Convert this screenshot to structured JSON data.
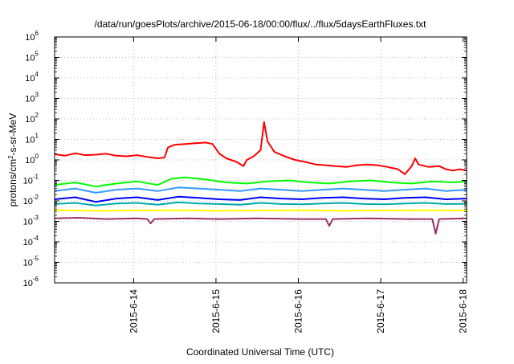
{
  "chart_data": {
    "type": "line",
    "title": "/data/run/goesPlots/archive/2015-06-18/00:00/flux/../flux/5daysEarthFluxes.txt",
    "xlabel": "Coordinated Universal Time (UTC)",
    "ylabel_parts": [
      "protons/cm",
      "2",
      "-s-sr-MeV"
    ],
    "y_scale": "log",
    "ylim": [
      1e-06,
      1000000.0
    ],
    "y_ticks": [
      {
        "base": "10",
        "exp": "-6",
        "value": 1e-06
      },
      {
        "base": "10",
        "exp": "-5",
        "value": 1e-05
      },
      {
        "base": "10",
        "exp": "-4",
        "value": 0.0001
      },
      {
        "base": "10",
        "exp": "-3",
        "value": 0.001
      },
      {
        "base": "10",
        "exp": "-2",
        "value": 0.01
      },
      {
        "base": "10",
        "exp": "-1",
        "value": 0.1
      },
      {
        "base": "10",
        "exp": "0",
        "value": 1
      },
      {
        "base": "10",
        "exp": "1",
        "value": 10
      },
      {
        "base": "10",
        "exp": "2",
        "value": 100
      },
      {
        "base": "10",
        "exp": "3",
        "value": 1000
      },
      {
        "base": "10",
        "exp": "4",
        "value": 10000
      },
      {
        "base": "10",
        "exp": "5",
        "value": 100000
      },
      {
        "base": "10",
        "exp": "6",
        "value": 1000000
      }
    ],
    "xlim": [
      "2015-06-13T01:00",
      "2015-06-18T01:00"
    ],
    "x_ticks": [
      {
        "label": "2015-6-14",
        "date": "2015-06-14T00:00"
      },
      {
        "label": "2015-6-15",
        "date": "2015-06-15T00:00"
      },
      {
        "label": "2015-6-16",
        "date": "2015-06-16T00:00"
      },
      {
        "label": "2015-6-17",
        "date": "2015-06-17T00:00"
      },
      {
        "label": "2015-6-18",
        "date": "2015-06-18T00:00"
      }
    ],
    "grid": true,
    "series": [
      {
        "color": "#ff0000",
        "width": 2,
        "points": [
          [
            "2015-06-13T01:00",
            1.9
          ],
          [
            "2015-06-13T04:00",
            1.6
          ],
          [
            "2015-06-13T07:00",
            2.1
          ],
          [
            "2015-06-13T10:00",
            1.7
          ],
          [
            "2015-06-13T13:00",
            1.8
          ],
          [
            "2015-06-13T16:00",
            2.0
          ],
          [
            "2015-06-13T19:00",
            1.6
          ],
          [
            "2015-06-13T22:00",
            1.5
          ],
          [
            "2015-06-14T01:00",
            1.7
          ],
          [
            "2015-06-14T04:00",
            1.4
          ],
          [
            "2015-06-14T07:00",
            1.2
          ],
          [
            "2015-06-14T09:00",
            1.3
          ],
          [
            "2015-06-14T10:00",
            4.0
          ],
          [
            "2015-06-14T12:00",
            5.5
          ],
          [
            "2015-06-14T15:00",
            6.0
          ],
          [
            "2015-06-14T18:00",
            6.5
          ],
          [
            "2015-06-14T21:00",
            7.0
          ],
          [
            "2015-06-14T23:00",
            6.0
          ],
          [
            "2015-06-15T01:00",
            2.0
          ],
          [
            "2015-06-15T03:00",
            1.2
          ],
          [
            "2015-06-15T06:00",
            0.8
          ],
          [
            "2015-06-15T08:00",
            0.5
          ],
          [
            "2015-06-15T09:00",
            1.0
          ],
          [
            "2015-06-15T11:00",
            1.5
          ],
          [
            "2015-06-15T13:00",
            3.0
          ],
          [
            "2015-06-15T14:00",
            70.0
          ],
          [
            "2015-06-15T15:00",
            8.0
          ],
          [
            "2015-06-15T17:00",
            2.5
          ],
          [
            "2015-06-15T20:00",
            1.5
          ],
          [
            "2015-06-15T23:00",
            1.0
          ],
          [
            "2015-06-16T02:00",
            0.8
          ],
          [
            "2015-06-16T05:00",
            0.6
          ],
          [
            "2015-06-16T08:00",
            0.55
          ],
          [
            "2015-06-16T11:00",
            0.5
          ],
          [
            "2015-06-16T14:00",
            0.45
          ],
          [
            "2015-06-16T17:00",
            0.55
          ],
          [
            "2015-06-16T20:00",
            0.6
          ],
          [
            "2015-06-16T23:00",
            0.55
          ],
          [
            "2015-06-17T02:00",
            0.45
          ],
          [
            "2015-06-17T05:00",
            0.35
          ],
          [
            "2015-06-17T07:00",
            0.2
          ],
          [
            "2015-06-17T09:00",
            0.5
          ],
          [
            "2015-06-17T10:00",
            1.2
          ],
          [
            "2015-06-17T11:00",
            0.6
          ],
          [
            "2015-06-17T14:00",
            0.45
          ],
          [
            "2015-06-17T17:00",
            0.5
          ],
          [
            "2015-06-17T19:00",
            0.35
          ],
          [
            "2015-06-17T21:00",
            0.3
          ],
          [
            "2015-06-17T23:00",
            0.35
          ],
          [
            "2015-06-18T01:00",
            0.3
          ]
        ]
      },
      {
        "color": "#00ff00",
        "width": 2,
        "points": [
          [
            "2015-06-13T01:00",
            0.06
          ],
          [
            "2015-06-13T07:00",
            0.08
          ],
          [
            "2015-06-13T13:00",
            0.05
          ],
          [
            "2015-06-13T19:00",
            0.07
          ],
          [
            "2015-06-14T01:00",
            0.09
          ],
          [
            "2015-06-14T07:00",
            0.06
          ],
          [
            "2015-06-14T11:00",
            0.12
          ],
          [
            "2015-06-14T15:00",
            0.14
          ],
          [
            "2015-06-14T21:00",
            0.11
          ],
          [
            "2015-06-15T03:00",
            0.08
          ],
          [
            "2015-06-15T09:00",
            0.07
          ],
          [
            "2015-06-15T15:00",
            0.09
          ],
          [
            "2015-06-15T21:00",
            0.1
          ],
          [
            "2015-06-16T03:00",
            0.08
          ],
          [
            "2015-06-16T09:00",
            0.07
          ],
          [
            "2015-06-16T15:00",
            0.09
          ],
          [
            "2015-06-16T21:00",
            0.1
          ],
          [
            "2015-06-17T03:00",
            0.08
          ],
          [
            "2015-06-17T09:00",
            0.07
          ],
          [
            "2015-06-17T15:00",
            0.09
          ],
          [
            "2015-06-17T21:00",
            0.08
          ],
          [
            "2015-06-18T01:00",
            0.09
          ]
        ]
      },
      {
        "color": "#3399ff",
        "width": 2,
        "points": [
          [
            "2015-06-13T01:00",
            0.03
          ],
          [
            "2015-06-13T07:00",
            0.04
          ],
          [
            "2015-06-13T13:00",
            0.025
          ],
          [
            "2015-06-13T19:00",
            0.035
          ],
          [
            "2015-06-14T01:00",
            0.04
          ],
          [
            "2015-06-14T07:00",
            0.03
          ],
          [
            "2015-06-14T13:00",
            0.045
          ],
          [
            "2015-06-14T19:00",
            0.04
          ],
          [
            "2015-06-15T01:00",
            0.035
          ],
          [
            "2015-06-15T07:00",
            0.03
          ],
          [
            "2015-06-15T13:00",
            0.04
          ],
          [
            "2015-06-15T19:00",
            0.035
          ],
          [
            "2015-06-16T01:00",
            0.03
          ],
          [
            "2015-06-16T07:00",
            0.035
          ],
          [
            "2015-06-16T13:00",
            0.04
          ],
          [
            "2015-06-16T19:00",
            0.035
          ],
          [
            "2015-06-17T01:00",
            0.03
          ],
          [
            "2015-06-17T07:00",
            0.035
          ],
          [
            "2015-06-17T13:00",
            0.04
          ],
          [
            "2015-06-17T19:00",
            0.03
          ],
          [
            "2015-06-18T01:00",
            0.035
          ]
        ]
      },
      {
        "color": "#0000ff",
        "width": 2,
        "points": [
          [
            "2015-06-13T01:00",
            0.012
          ],
          [
            "2015-06-13T07:00",
            0.015
          ],
          [
            "2015-06-13T13:00",
            0.009
          ],
          [
            "2015-06-13T19:00",
            0.013
          ],
          [
            "2015-06-14T01:00",
            0.015
          ],
          [
            "2015-06-14T07:00",
            0.011
          ],
          [
            "2015-06-14T13:00",
            0.016
          ],
          [
            "2015-06-14T19:00",
            0.014
          ],
          [
            "2015-06-15T01:00",
            0.012
          ],
          [
            "2015-06-15T07:00",
            0.011
          ],
          [
            "2015-06-15T13:00",
            0.015
          ],
          [
            "2015-06-15T19:00",
            0.013
          ],
          [
            "2015-06-16T01:00",
            0.012
          ],
          [
            "2015-06-16T07:00",
            0.014
          ],
          [
            "2015-06-16T13:00",
            0.015
          ],
          [
            "2015-06-16T19:00",
            0.013
          ],
          [
            "2015-06-17T01:00",
            0.012
          ],
          [
            "2015-06-17T07:00",
            0.014
          ],
          [
            "2015-06-17T13:00",
            0.015
          ],
          [
            "2015-06-17T19:00",
            0.012
          ],
          [
            "2015-06-18T01:00",
            0.013
          ]
        ]
      },
      {
        "color": "#00aaaa",
        "width": 2,
        "points": [
          [
            "2015-06-13T01:00",
            0.007
          ],
          [
            "2015-06-13T07:00",
            0.008
          ],
          [
            "2015-06-13T13:00",
            0.006
          ],
          [
            "2015-06-13T19:00",
            0.0075
          ],
          [
            "2015-06-14T01:00",
            0.008
          ],
          [
            "2015-06-14T07:00",
            0.0065
          ],
          [
            "2015-06-14T13:00",
            0.0085
          ],
          [
            "2015-06-14T19:00",
            0.0075
          ],
          [
            "2015-06-15T01:00",
            0.007
          ],
          [
            "2015-06-15T07:00",
            0.0065
          ],
          [
            "2015-06-15T13:00",
            0.008
          ],
          [
            "2015-06-15T19:00",
            0.007
          ],
          [
            "2015-06-16T01:00",
            0.0068
          ],
          [
            "2015-06-16T07:00",
            0.0075
          ],
          [
            "2015-06-16T13:00",
            0.008
          ],
          [
            "2015-06-16T19:00",
            0.007
          ],
          [
            "2015-06-17T01:00",
            0.0068
          ],
          [
            "2015-06-17T07:00",
            0.0075
          ],
          [
            "2015-06-17T13:00",
            0.008
          ],
          [
            "2015-06-17T19:00",
            0.007
          ],
          [
            "2015-06-18T01:00",
            0.0072
          ]
        ]
      },
      {
        "color": "#ffff00",
        "width": 2,
        "points": [
          [
            "2015-06-13T01:00",
            0.0035
          ],
          [
            "2015-06-13T13:00",
            0.0033
          ],
          [
            "2015-06-14T01:00",
            0.0034
          ],
          [
            "2015-06-14T13:00",
            0.0035
          ],
          [
            "2015-06-15T01:00",
            0.0033
          ],
          [
            "2015-06-15T13:00",
            0.0034
          ],
          [
            "2015-06-16T01:00",
            0.0035
          ],
          [
            "2015-06-16T13:00",
            0.0033
          ],
          [
            "2015-06-17T01:00",
            0.0034
          ],
          [
            "2015-06-17T13:00",
            0.0035
          ],
          [
            "2015-06-18T01:00",
            0.0034
          ]
        ]
      },
      {
        "color": "#993366",
        "width": 2,
        "points": [
          [
            "2015-06-13T01:00",
            0.0014
          ],
          [
            "2015-06-13T08:00",
            0.0015
          ],
          [
            "2015-06-13T16:00",
            0.0013
          ],
          [
            "2015-06-14T01:00",
            0.0014
          ],
          [
            "2015-06-14T04:00",
            0.0013
          ],
          [
            "2015-06-14T05:00",
            0.0008
          ],
          [
            "2015-06-14T06:00",
            0.0013
          ],
          [
            "2015-06-14T16:00",
            0.0014
          ],
          [
            "2015-06-15T01:00",
            0.0013
          ],
          [
            "2015-06-15T12:00",
            0.0014
          ],
          [
            "2015-06-16T01:00",
            0.0013
          ],
          [
            "2015-06-16T08:00",
            0.0013
          ],
          [
            "2015-06-16T09:00",
            0.0006
          ],
          [
            "2015-06-16T10:00",
            0.0013
          ],
          [
            "2015-06-16T20:00",
            0.0014
          ],
          [
            "2015-06-17T08:00",
            0.0013
          ],
          [
            "2015-06-17T15:00",
            0.0013
          ],
          [
            "2015-06-17T16:00",
            0.00025
          ],
          [
            "2015-06-17T17:00",
            0.0013
          ],
          [
            "2015-06-18T01:00",
            0.0014
          ]
        ]
      }
    ]
  }
}
